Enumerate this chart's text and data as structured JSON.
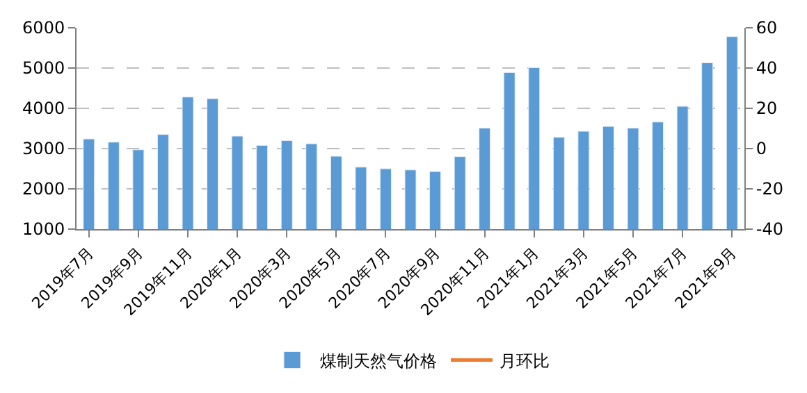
{
  "chart_data": {
    "type": "bar",
    "categories": [
      "2019年7月",
      null,
      "2019年9月",
      null,
      "2019年11月",
      null,
      "2020年1月",
      null,
      "2020年3月",
      null,
      "2020年5月",
      null,
      "2020年7月",
      null,
      "2020年9月",
      null,
      "2020年11月",
      null,
      "2021年1月",
      null,
      "2021年3月",
      null,
      "2021年5月",
      null,
      "2021年7月",
      null,
      "2021年9月"
    ],
    "series": [
      {
        "name": "煤制天然气价格",
        "color": "#5b9bd5",
        "values": [
          3240,
          3160,
          2970,
          3350,
          4280,
          4240,
          3310,
          3080,
          3200,
          3120,
          2810,
          2540,
          2500,
          2470,
          2430,
          2800,
          3510,
          4890,
          5010,
          3280,
          3430,
          3550,
          3510,
          3660,
          4050,
          5130,
          5780
        ]
      },
      {
        "name": "月环比",
        "type": "line",
        "axis": "y2",
        "color": "#ed7d31",
        "values": [
          null,
          null,
          null,
          null,
          null,
          null,
          null,
          null,
          null,
          null,
          null,
          null,
          null,
          null,
          null,
          null,
          null,
          null,
          null,
          null,
          null,
          null,
          null,
          null,
          null,
          null,
          null
        ]
      }
    ],
    "ylim": [
      1000,
      6000
    ],
    "yticks": [
      1000,
      2000,
      3000,
      4000,
      5000,
      6000
    ],
    "y2lim": [
      -40,
      60
    ],
    "y2ticks": [
      -40,
      -20,
      0,
      20,
      40,
      60
    ],
    "grid": "y",
    "legend": "bottom"
  }
}
